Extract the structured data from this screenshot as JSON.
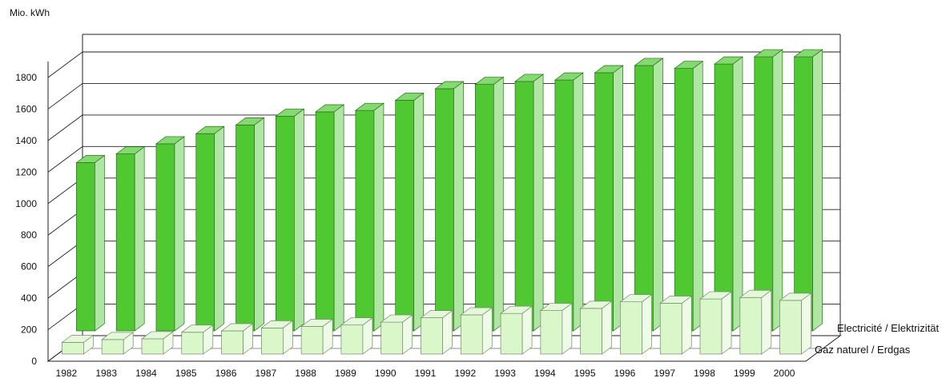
{
  "chart_data": {
    "type": "bar",
    "ylabel": "Mio. kWh",
    "ylim": [
      0,
      1800
    ],
    "yticks": [
      0,
      200,
      400,
      600,
      800,
      1000,
      1200,
      1400,
      1600,
      1800
    ],
    "grid": true,
    "categories": [
      "1982",
      "1983",
      "1984",
      "1985",
      "1986",
      "1987",
      "1988",
      "1989",
      "1990",
      "1991",
      "1992",
      "1993",
      "1994",
      "1995",
      "1996",
      "1997",
      "1998",
      "1999",
      "2000"
    ],
    "series": [
      {
        "name": "Gaz naturel / Erdgas",
        "color": "#d9f7c8",
        "values": [
          80,
          100,
          105,
          150,
          160,
          180,
          190,
          200,
          220,
          250,
          270,
          280,
          300,
          315,
          360,
          350,
          380,
          390,
          370
        ]
      },
      {
        "name": "Electricité / Elektrizität",
        "color": "#4fc832",
        "values": [
          1160,
          1220,
          1290,
          1360,
          1420,
          1480,
          1510,
          1520,
          1590,
          1670,
          1700,
          1720,
          1730,
          1780,
          1830,
          1810,
          1840,
          1890,
          1890
        ]
      }
    ]
  }
}
